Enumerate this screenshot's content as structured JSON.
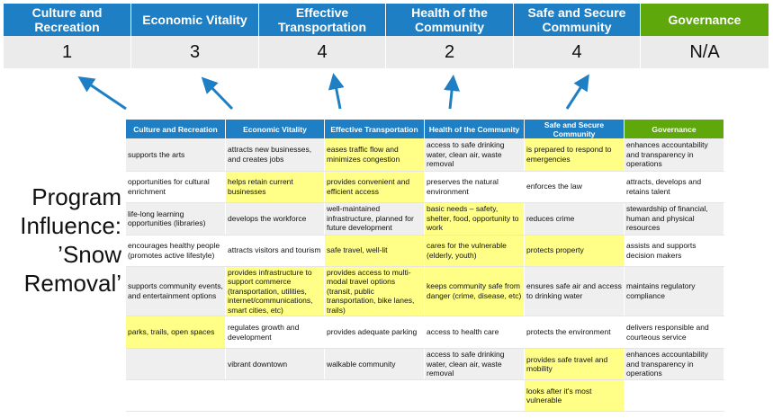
{
  "summary": {
    "categories": [
      "Culture and Recreation",
      "Economic Vitality",
      "Effective Transportation",
      "Health of the Community",
      "Safe and Secure Community",
      "Governance"
    ],
    "values": [
      "1",
      "3",
      "4",
      "2",
      "4",
      "N/A"
    ]
  },
  "program_label": "Program Influence: ’Snow Removal’",
  "colors": {
    "header_blue": "#1e7fc4",
    "governance_green": "#5ea80c",
    "highlight_yellow": "#ffff88",
    "arrow_blue": "#1e7fc4"
  },
  "table": {
    "headers": [
      "Culture and Recreation",
      "Economic Vitality",
      "Effective Transportation",
      "Health of the Community",
      "Safe and Secure Community",
      "Governance"
    ],
    "rows": [
      [
        "supports the arts",
        "attracts new businesses, and creates jobs",
        "eases traffic flow and minimizes congestion",
        "access to safe drinking water, clean air, waste removal",
        "is prepared to respond to emergencies",
        "enhances accountability and transparency in operations"
      ],
      [
        "opportunities for cultural enrichment",
        "helps retain current businesses",
        "provides convenient and efficient access",
        "preserves the natural environment",
        "enforces the law",
        "attracts, develops and retains talent"
      ],
      [
        "life-long learning opportunities (libraries)",
        "develops the workforce",
        "well-maintained infrastructure, planned for future development",
        "basic needs – safety, shelter, food, opportunity to work",
        "reduces crime",
        "stewardship of financial, human and physical resources"
      ],
      [
        "encourages healthy people (promotes active lifestyle)",
        "attracts visitors and tourism",
        "safe travel, well-lit",
        "cares for the vulnerable (elderly, youth)",
        "protects property",
        "assists and supports decision makers"
      ],
      [
        "supports community events, and entertainment options",
        "provides infrastructure to support commerce (transportation, utilities, internet/communications, smart cities, etc)",
        "provides access to multi-modal travel options (transit, public transportation, bike lanes, trails)",
        "keeps community safe from danger (crime, disease, etc)",
        "ensures safe air and access to drinking water",
        "maintains regulatory compliance"
      ],
      [
        "parks, trails, open spaces",
        "regulates growth and development",
        "provides adequate parking",
        "access to health care",
        "protects the environment",
        "delivers responsible and courteous service"
      ],
      [
        "",
        "vibrant downtown",
        "walkable community",
        "access to safe drinking water, clean air, waste removal",
        "provides safe travel and mobility",
        "enhances accountability and transparency in operations"
      ],
      [
        "",
        "",
        "",
        "",
        "looks after it's most vulnerable",
        ""
      ]
    ],
    "highlighted": [
      [
        2,
        4
      ],
      [
        1,
        2
      ],
      [
        3
      ],
      [
        2,
        3,
        4
      ],
      [
        1,
        2,
        3
      ],
      [
        0
      ],
      [
        4
      ],
      [
        4
      ]
    ]
  }
}
